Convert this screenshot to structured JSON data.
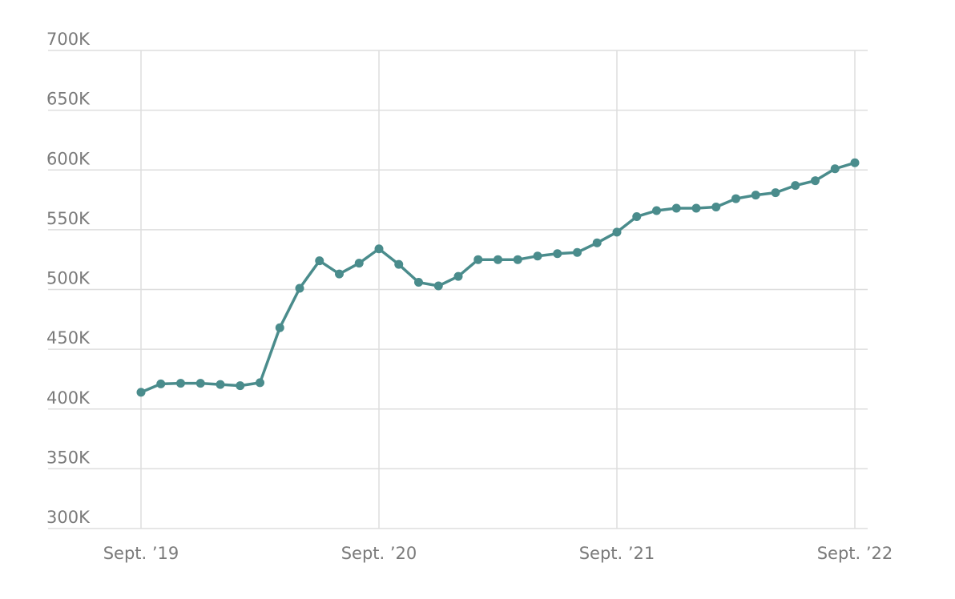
{
  "chart_data": {
    "type": "line",
    "title": "",
    "xlabel": "",
    "ylabel": "",
    "ylim": [
      300000,
      700000
    ],
    "y_ticks": [
      300000,
      350000,
      400000,
      450000,
      500000,
      550000,
      600000,
      650000,
      700000
    ],
    "y_tick_labels": [
      "300K",
      "350K",
      "400K",
      "450K",
      "500K",
      "550K",
      "600K",
      "650K",
      "700K"
    ],
    "x_ticks": [
      0,
      12,
      24,
      36
    ],
    "x_tick_labels": [
      "Sept. ’19",
      "Sept. ’20",
      "Sept. ’21",
      "Sept. ’22"
    ],
    "grid": true,
    "legend": "none",
    "series": [
      {
        "color": "#4a8c8c",
        "x": [
          0,
          1,
          2,
          3,
          4,
          5,
          6,
          7,
          8,
          9,
          10,
          11,
          12,
          13,
          14,
          15,
          16,
          17,
          18,
          19,
          20,
          21,
          22,
          23,
          24,
          25,
          26,
          27,
          28,
          29,
          30,
          31,
          32,
          33,
          34,
          35,
          36
        ],
        "values": [
          414000,
          421000,
          421500,
          421500,
          420500,
          419500,
          422000,
          468000,
          501000,
          524000,
          513000,
          522000,
          534000,
          521000,
          506000,
          503000,
          511000,
          525000,
          525000,
          525000,
          528000,
          530000,
          531000,
          539000,
          548000,
          561000,
          566000,
          568000,
          568000,
          569000,
          576000,
          579000,
          581000,
          587000,
          591000,
          601000,
          606000
        ]
      }
    ]
  }
}
